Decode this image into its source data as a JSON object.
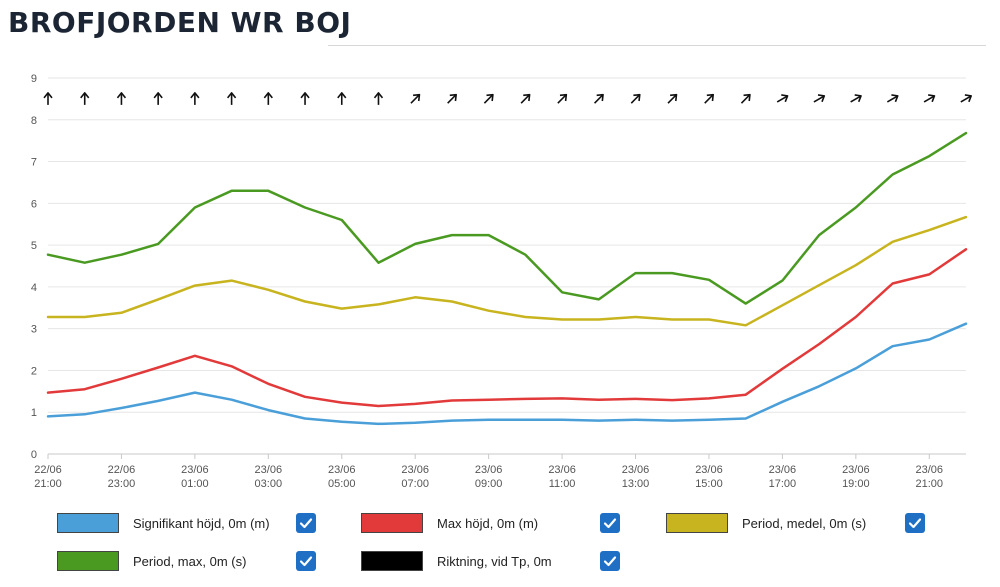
{
  "page": {
    "title": "BROFJORDEN WR BOJ"
  },
  "chart_data": {
    "type": "line",
    "ylim": [
      0,
      9
    ],
    "yticks": [
      "0",
      "1",
      "2",
      "3",
      "4",
      "5",
      "6",
      "7",
      "8",
      "9"
    ],
    "x": [
      0,
      1,
      2,
      3,
      4,
      5,
      6,
      7,
      8,
      9,
      10,
      11,
      12,
      13,
      14,
      15,
      16,
      17,
      18,
      19,
      20,
      21,
      22,
      23,
      24,
      25
    ],
    "xlim": [
      0,
      25
    ],
    "xticks": [
      {
        "date": "22/06",
        "time": "21:00"
      },
      {
        "date": "22/06",
        "time": "23:00"
      },
      {
        "date": "23/06",
        "time": "01:00"
      },
      {
        "date": "23/06",
        "time": "03:00"
      },
      {
        "date": "23/06",
        "time": "05:00"
      },
      {
        "date": "23/06",
        "time": "07:00"
      },
      {
        "date": "23/06",
        "time": "09:00"
      },
      {
        "date": "23/06",
        "time": "11:00"
      },
      {
        "date": "23/06",
        "time": "13:00"
      },
      {
        "date": "23/06",
        "time": "15:00"
      },
      {
        "date": "23/06",
        "time": "17:00"
      },
      {
        "date": "23/06",
        "time": "19:00"
      },
      {
        "date": "23/06",
        "time": "21:00"
      }
    ],
    "series": [
      {
        "name": "Signifikant höjd, 0m (m)",
        "color": "#4a9fd9",
        "values": [
          0.9,
          0.95,
          1.1,
          1.27,
          1.47,
          1.3,
          1.05,
          0.85,
          0.77,
          0.72,
          0.75,
          0.8,
          0.82,
          0.82,
          0.82,
          0.8,
          0.82,
          0.8,
          0.82,
          0.85,
          1.25,
          1.62,
          2.05,
          2.58,
          2.74,
          3.12
        ]
      },
      {
        "name": "Max höjd, 0m (m)",
        "color": "#e23a3a",
        "values": [
          1.47,
          1.55,
          1.8,
          2.07,
          2.35,
          2.1,
          1.68,
          1.37,
          1.23,
          1.15,
          1.2,
          1.28,
          1.3,
          1.32,
          1.33,
          1.3,
          1.32,
          1.29,
          1.33,
          1.42,
          2.04,
          2.63,
          3.28,
          4.08,
          4.3,
          4.9
        ]
      },
      {
        "name": "Period, medel, 0m (s)",
        "color": "#c8b41e",
        "values": [
          3.28,
          3.28,
          3.38,
          3.7,
          4.03,
          4.15,
          3.93,
          3.65,
          3.48,
          3.58,
          3.75,
          3.65,
          3.43,
          3.28,
          3.22,
          3.22,
          3.28,
          3.22,
          3.22,
          3.08,
          3.56,
          4.04,
          4.52,
          5.08,
          5.36,
          5.67
        ]
      },
      {
        "name": "Period, max, 0m (s)",
        "color": "#4a9a22",
        "values": [
          4.77,
          4.58,
          4.77,
          5.03,
          5.9,
          6.3,
          6.3,
          5.9,
          5.6,
          4.58,
          5.03,
          5.24,
          5.24,
          4.77,
          3.87,
          3.7,
          4.33,
          4.33,
          4.17,
          3.6,
          4.15,
          5.24,
          5.9,
          6.69,
          7.13,
          7.68
        ]
      }
    ],
    "direction": {
      "name": "Riktning, vid Tp, 0m",
      "color": "#111111",
      "y_level": 8.5,
      "degrees": [
        0,
        0,
        0,
        0,
        0,
        0,
        0,
        0,
        0,
        0,
        45,
        45,
        45,
        45,
        45,
        45,
        45,
        45,
        45,
        45,
        60,
        60,
        60,
        60,
        60,
        60
      ]
    }
  },
  "legend": {
    "items": [
      {
        "label": "Signifikant höjd, 0m (m)",
        "color": "#4a9fd9",
        "checked": true
      },
      {
        "label": "Max höjd, 0m (m)",
        "color": "#e23a3a",
        "checked": true
      },
      {
        "label": "Period, medel, 0m (s)",
        "color": "#c8b41e",
        "checked": true
      },
      {
        "label": "Period, max, 0m (s)",
        "color": "#4a9a22",
        "checked": true
      },
      {
        "label": "Riktning, vid Tp, 0m",
        "color": "#000000",
        "checked": true
      }
    ]
  }
}
